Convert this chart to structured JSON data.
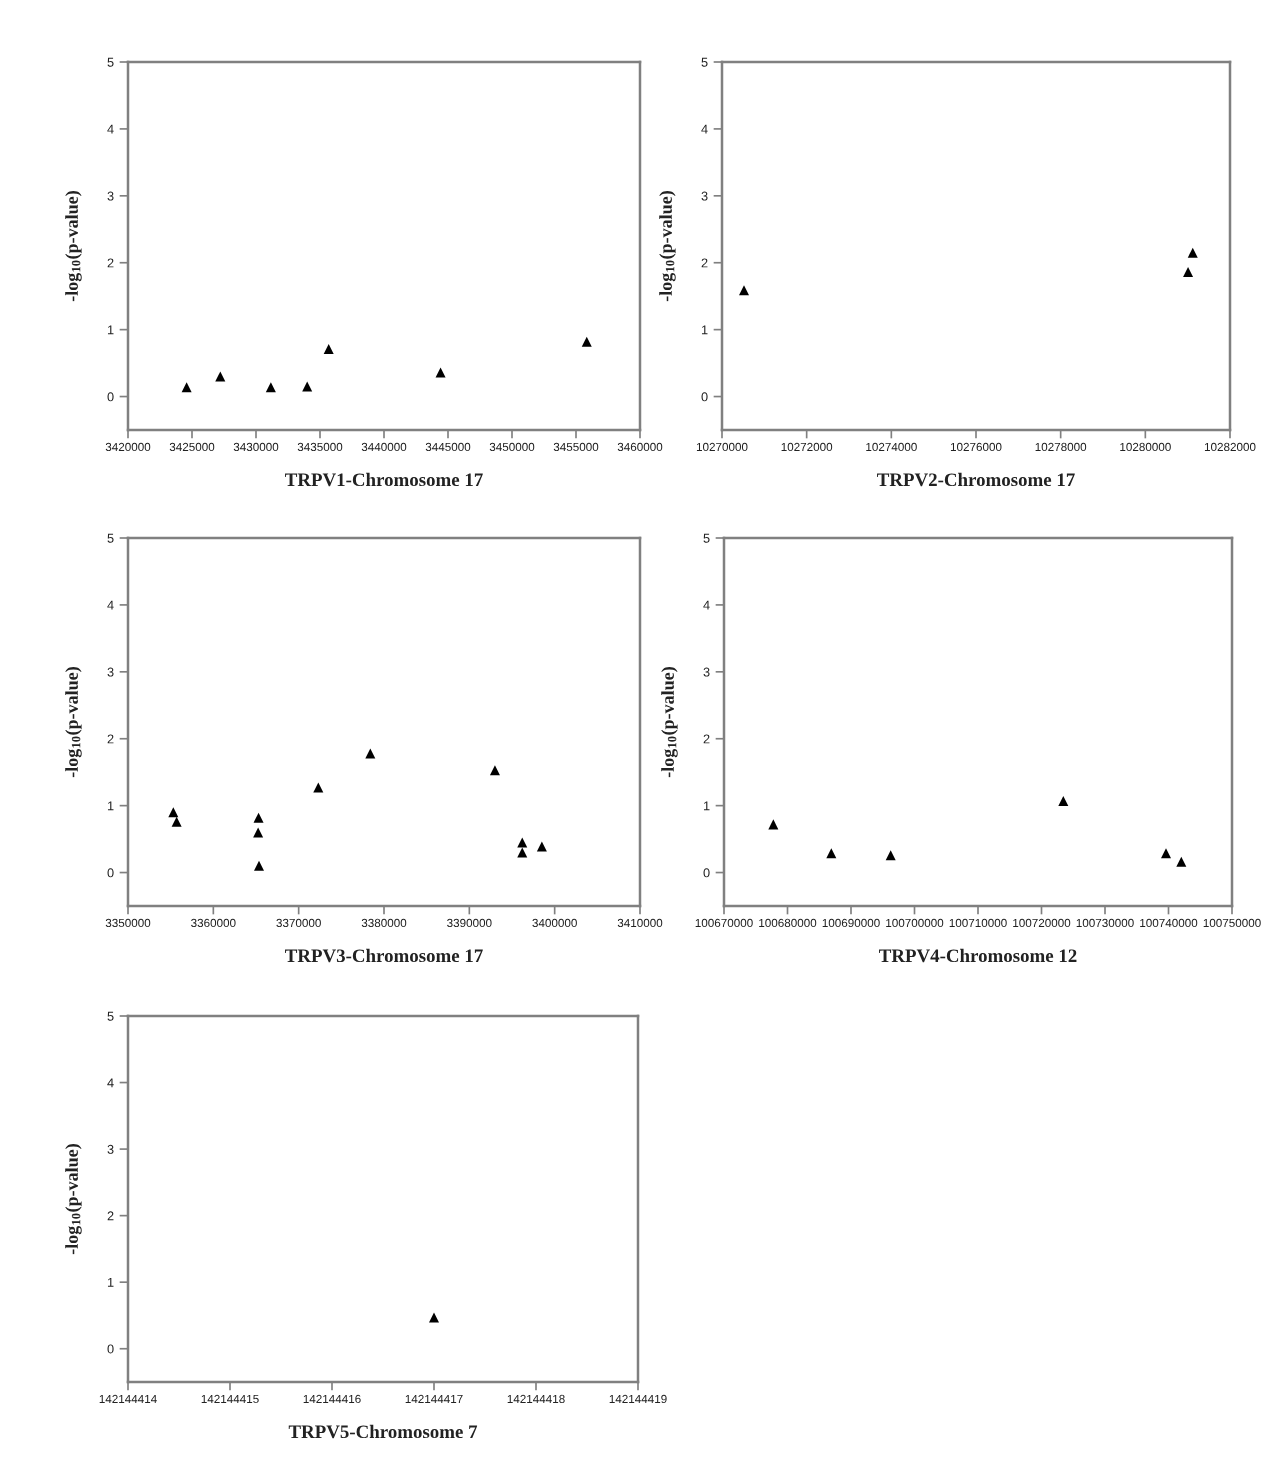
{
  "chart_data": [
    {
      "type": "scatter",
      "xlabel": "TRPV1-Chromosome 17",
      "ylabel": "-log$_{10}$(p-value)",
      "marker": "triangle",
      "x": [
        3424580,
        3427210,
        3431160,
        3434000,
        3435680,
        3444420,
        3455840
      ],
      "series": [
        {
          "color": "#000000",
          "values": [
            0.14,
            0.3,
            0.14,
            0.15,
            0.71,
            0.36,
            0.82
          ]
        }
      ],
      "xlim": [
        3420000,
        3460000
      ],
      "xticks": [
        3420000,
        3425000,
        3430000,
        3435000,
        3440000,
        3445000,
        3450000,
        3455000,
        3460000
      ],
      "ylim": [
        -0.5,
        5
      ],
      "yticks": [
        0,
        1,
        2,
        3,
        4,
        5
      ]
    },
    {
      "type": "scatter",
      "xlabel": "TRPV2-Chromosome 17",
      "ylabel": "-log$_{10}$(p-value)",
      "marker": "triangle",
      "x": [
        10270520,
        10281010,
        10281120
      ],
      "series": [
        {
          "color": "#000000",
          "values": [
            1.59,
            1.86,
            2.15
          ]
        }
      ],
      "xlim": [
        10270000,
        10282000
      ],
      "xticks": [
        10270000,
        10272000,
        10274000,
        10276000,
        10278000,
        10280000,
        10282000
      ],
      "ylim": [
        -0.5,
        5
      ],
      "yticks": [
        0,
        1,
        2,
        3,
        4,
        5
      ]
    },
    {
      "type": "scatter",
      "xlabel": "TRPV3-Chromosome 17",
      "ylabel": "-log$_{10}$(p-value)",
      "marker": "triangle",
      "x": [
        3355310,
        3355700,
        3365300,
        3365250,
        3365350,
        3372300,
        3378400,
        3393000,
        3396200,
        3396200,
        3398500
      ],
      "series": [
        {
          "color": "#000000",
          "values": [
            0.9,
            0.76,
            0.82,
            0.6,
            0.1,
            1.27,
            1.78,
            1.53,
            0.45,
            0.3,
            0.39
          ]
        }
      ],
      "xlim": [
        3350000,
        3410000
      ],
      "xticks": [
        3350000,
        3360000,
        3370000,
        3380000,
        3390000,
        3400000,
        3410000
      ],
      "ylim": [
        -0.5,
        5
      ],
      "yticks": [
        0,
        1,
        2,
        3,
        4,
        5
      ]
    },
    {
      "type": "scatter",
      "xlabel": "TRPV4-Chromosome 12",
      "ylabel": "-log$_{10}$(p-value)",
      "marker": "triangle",
      "x": [
        100677770,
        100686900,
        100696250,
        100723440,
        100739610,
        100742020
      ],
      "series": [
        {
          "color": "#000000",
          "values": [
            0.72,
            0.29,
            0.26,
            1.07,
            0.29,
            0.16
          ]
        }
      ],
      "xlim": [
        100670000,
        100750000
      ],
      "xticks": [
        100670000,
        100680000,
        100690000,
        100700000,
        100710000,
        100720000,
        100730000,
        100740000,
        100750000
      ],
      "ylim": [
        -0.5,
        5
      ],
      "yticks": [
        0,
        1,
        2,
        3,
        4,
        5
      ]
    },
    {
      "type": "scatter",
      "xlabel": "TRPV5-Chromosome 7",
      "ylabel": "-log$_{10}$(p-value)",
      "marker": "triangle",
      "x": [
        142144417
      ],
      "series": [
        {
          "color": "#000000",
          "values": [
            0.47
          ]
        }
      ],
      "xlim": [
        142144414,
        142144419
      ],
      "xticks": [
        142144414,
        142144415,
        142144416,
        142144417,
        142144418,
        142144419
      ],
      "ylim": [
        -0.5,
        5
      ],
      "yticks": [
        0,
        1,
        2,
        3,
        4,
        5
      ]
    }
  ]
}
